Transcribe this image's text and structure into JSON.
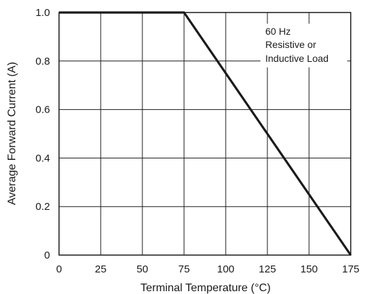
{
  "chart_data": {
    "type": "line",
    "xlabel": "Terminal Temperature (°C)",
    "ylabel": "Average Forward Current (A)",
    "xlim": [
      0,
      175
    ],
    "ylim": [
      0,
      1.0
    ],
    "x_ticks": [
      0,
      25,
      50,
      75,
      100,
      125,
      150,
      175
    ],
    "y_ticks": [
      0,
      0.2,
      0.4,
      0.6,
      0.8,
      1.0
    ],
    "x_tick_labels": [
      "0",
      "25",
      "50",
      "75",
      "100",
      "125",
      "150",
      "175"
    ],
    "y_tick_labels": [
      "0",
      "0.2",
      "0.4",
      "0.6",
      "0.8",
      "1.0"
    ],
    "grid": true,
    "series": [
      {
        "x": [
          0,
          75,
          175
        ],
        "y": [
          1.0,
          1.0,
          0
        ]
      }
    ],
    "annotation": {
      "lines": [
        "60 Hz",
        "Resistive or",
        "Inductive Load"
      ],
      "placement": "top-right"
    },
    "line_color": "#1a1a1a",
    "grid_color": "#1a1a1a"
  }
}
